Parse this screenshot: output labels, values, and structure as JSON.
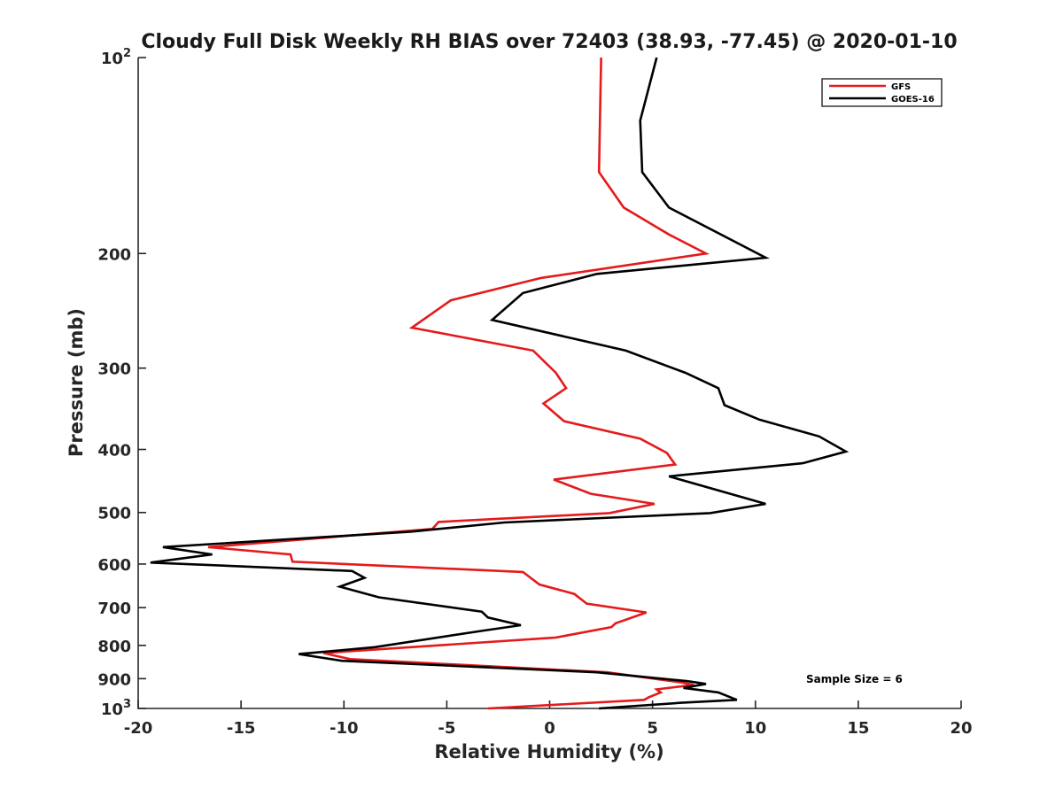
{
  "chart_data": {
    "type": "line",
    "title": "Cloudy Full Disk Weekly RH BIAS over 72403 (38.93, -77.45) @ 2020-01-10",
    "xlabel": "Relative Humidity (%)",
    "ylabel": "Pressure (mb)",
    "xlim": [
      -20,
      20
    ],
    "ylim": [
      100,
      1000
    ],
    "yscale": "log",
    "y_reversed": true,
    "xticks": [
      "-20",
      "-15",
      "-10",
      "-5",
      "0",
      "5",
      "10",
      "15",
      "20"
    ],
    "yticks": [
      {
        "value": 100,
        "base": "10",
        "exp": "2"
      },
      {
        "value": 200,
        "label": "200"
      },
      {
        "value": 300,
        "label": "300"
      },
      {
        "value": 400,
        "label": "400"
      },
      {
        "value": 500,
        "label": "500"
      },
      {
        "value": 600,
        "label": "600"
      },
      {
        "value": 700,
        "label": "700"
      },
      {
        "value": 800,
        "label": "800"
      },
      {
        "value": 900,
        "label": "900"
      },
      {
        "value": 1000,
        "base": "10",
        "exp": "3"
      }
    ],
    "grid": false,
    "legend_position": "top-right",
    "annotation": "Sample Size = 6",
    "series": [
      {
        "name": "GFS",
        "color": "#e41a1c",
        "points": [
          [
            2.5,
            100
          ],
          [
            2.4,
            150
          ],
          [
            3.6,
            170
          ],
          [
            5.8,
            187
          ],
          [
            7.6,
            200
          ],
          [
            -0.4,
            218
          ],
          [
            -4.8,
            236
          ],
          [
            -6.7,
            260
          ],
          [
            -0.8,
            282
          ],
          [
            0.3,
            305
          ],
          [
            0.8,
            322
          ],
          [
            -0.3,
            340
          ],
          [
            0.7,
            362
          ],
          [
            4.4,
            385
          ],
          [
            5.7,
            405
          ],
          [
            6.1,
            422
          ],
          [
            0.2,
            445
          ],
          [
            2.0,
            468
          ],
          [
            5.1,
            485
          ],
          [
            2.9,
            501
          ],
          [
            -5.4,
            517
          ],
          [
            -5.7,
            530
          ],
          [
            -16.6,
            565
          ],
          [
            -12.6,
            580
          ],
          [
            -12.5,
            595
          ],
          [
            -1.3,
            617
          ],
          [
            -0.5,
            645
          ],
          [
            1.2,
            667
          ],
          [
            1.8,
            690
          ],
          [
            4.7,
            712
          ],
          [
            3.2,
            740
          ],
          [
            3.0,
            750
          ],
          [
            0.3,
            778
          ],
          [
            -11.0,
            822
          ],
          [
            -9.7,
            840
          ],
          [
            2.8,
            880
          ],
          [
            6.4,
            912
          ],
          [
            7.0,
            920
          ],
          [
            5.2,
            935
          ],
          [
            5.4,
            945
          ],
          [
            4.8,
            962
          ],
          [
            4.6,
            970
          ],
          [
            -3.0,
            1000
          ]
        ]
      },
      {
        "name": "GOES-16",
        "color": "#000000",
        "points": [
          [
            5.2,
            100
          ],
          [
            4.4,
            125
          ],
          [
            4.5,
            150
          ],
          [
            5.8,
            170
          ],
          [
            10.5,
            203
          ],
          [
            2.3,
            215
          ],
          [
            -1.3,
            230
          ],
          [
            -2.8,
            253
          ],
          [
            3.7,
            282
          ],
          [
            6.6,
            305
          ],
          [
            8.2,
            322
          ],
          [
            8.5,
            342
          ],
          [
            10.2,
            360
          ],
          [
            13.1,
            382
          ],
          [
            14.4,
            403
          ],
          [
            12.3,
            420
          ],
          [
            5.8,
            440
          ],
          [
            10.5,
            485
          ],
          [
            7.8,
            501
          ],
          [
            -2.2,
            518
          ],
          [
            -6.7,
            535
          ],
          [
            -18.8,
            565
          ],
          [
            -16.4,
            580
          ],
          [
            -19.4,
            597
          ],
          [
            -9.6,
            615
          ],
          [
            -9.0,
            630
          ],
          [
            -10.2,
            650
          ],
          [
            -8.3,
            675
          ],
          [
            -3.3,
            710
          ],
          [
            -3.0,
            725
          ],
          [
            -1.4,
            745
          ],
          [
            -3.3,
            760
          ],
          [
            -8.5,
            805
          ],
          [
            -12.2,
            825
          ],
          [
            -10.1,
            845
          ],
          [
            2.3,
            880
          ],
          [
            6.7,
            908
          ],
          [
            7.6,
            917
          ],
          [
            6.5,
            930
          ],
          [
            8.2,
            945
          ],
          [
            9.1,
            970
          ],
          [
            6.4,
            980
          ],
          [
            2.4,
            1000
          ]
        ]
      }
    ]
  }
}
